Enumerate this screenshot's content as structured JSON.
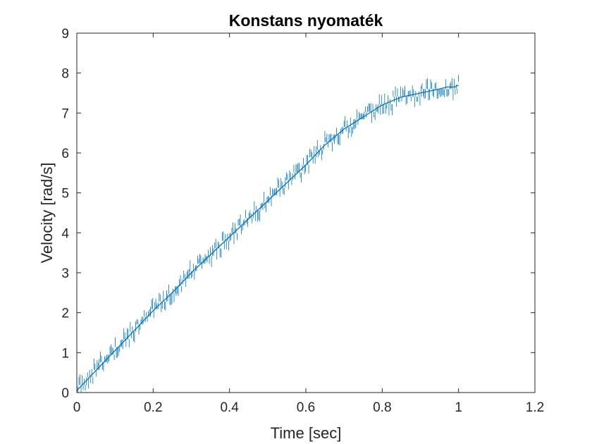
{
  "chart_data": {
    "type": "line",
    "title": "Konstans nyomaték",
    "xlabel": "Time [sec]",
    "ylabel": "Velocity [rad/s]",
    "xlim": [
      0,
      1.2
    ],
    "ylim": [
      0,
      9
    ],
    "xticks": [
      "0",
      "0.2",
      "0.4",
      "0.6",
      "0.8",
      "1",
      "1.2"
    ],
    "yticks": [
      "0",
      "1",
      "2",
      "3",
      "4",
      "5",
      "6",
      "7",
      "8",
      "9"
    ],
    "grid": false,
    "line_color": "#0072BD",
    "series": [
      {
        "x": [
          0,
          0.05,
          0.1,
          0.15,
          0.2,
          0.25,
          0.3,
          0.35,
          0.4,
          0.45,
          0.5,
          0.55,
          0.6,
          0.65,
          0.7,
          0.75,
          0.8,
          0.85,
          0.9,
          0.95,
          0.97,
          0.99,
          1.0
        ],
        "values": [
          0.05,
          0.55,
          1.05,
          1.55,
          2.05,
          2.5,
          3.0,
          3.45,
          3.9,
          4.35,
          4.8,
          5.25,
          5.7,
          6.2,
          6.6,
          6.9,
          7.2,
          7.4,
          7.5,
          7.6,
          7.65,
          7.65,
          7.7
        ]
      }
    ]
  }
}
